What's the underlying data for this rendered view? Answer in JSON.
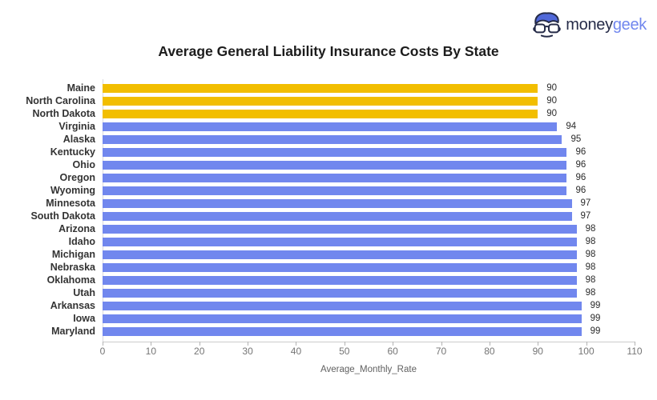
{
  "logo": {
    "money": "money",
    "geek": "geek",
    "money_color": "#252B48",
    "geek_color": "#7187EE"
  },
  "chart_data": {
    "type": "bar",
    "orientation": "horizontal",
    "title": "Average General Liability Insurance Costs By State",
    "xlabel": "Average_Monthly_Rate",
    "ylabel": "",
    "categories": [
      "Maine",
      "North Carolina",
      "North Dakota",
      "Virginia",
      "Alaska",
      "Kentucky",
      "Ohio",
      "Oregon",
      "Wyoming",
      "Minnesota",
      "South Dakota",
      "Arizona",
      "Idaho",
      "Michigan",
      "Nebraska",
      "Oklahoma",
      "Utah",
      "Arkansas",
      "Iowa",
      "Maryland"
    ],
    "values": [
      90,
      90,
      90,
      94,
      95,
      96,
      96,
      96,
      96,
      97,
      97,
      98,
      98,
      98,
      98,
      98,
      98,
      99,
      99,
      99
    ],
    "highlighted_categories": [
      "Maine",
      "North Carolina",
      "North Dakota"
    ],
    "colors": {
      "highlight": "#F2BE00",
      "default": "#7187EE"
    },
    "xlim": [
      0,
      110
    ],
    "xticks": [
      0,
      10,
      20,
      30,
      40,
      50,
      60,
      70,
      80,
      90,
      100,
      110
    ],
    "grid": false,
    "legend": "none",
    "data_labels": true
  }
}
